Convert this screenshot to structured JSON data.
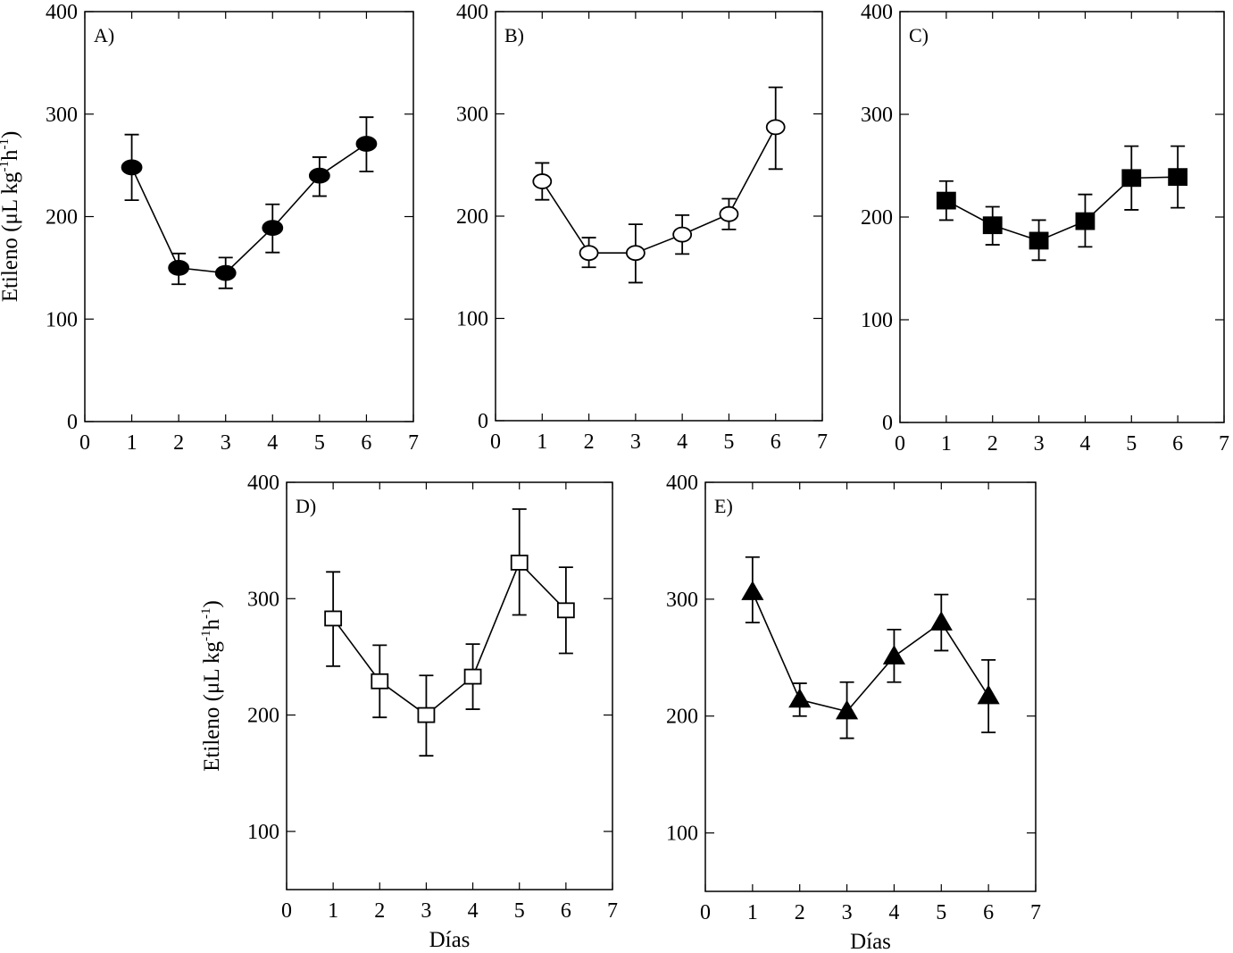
{
  "chart_data": [
    {
      "type": "line",
      "label": "A)",
      "marker": "filled-circle",
      "x": [
        1,
        2,
        3,
        4,
        5,
        6
      ],
      "values": [
        248,
        150,
        145,
        189,
        240,
        271
      ],
      "err_low": [
        216,
        134,
        130,
        165,
        220,
        244
      ],
      "err_high": [
        280,
        164,
        160,
        212,
        258,
        297
      ],
      "xlim": [
        0,
        7
      ],
      "ylim": [
        0,
        400
      ],
      "xticks": [
        "0",
        "1",
        "2",
        "3",
        "4",
        "5",
        "6",
        "7"
      ],
      "yticks": [
        "0",
        "100",
        "200",
        "300",
        "400"
      ],
      "ylabel_main": "Etileno (μL kg",
      "ylabel_sup1": "-1",
      "ylabel_mid": "h",
      "ylabel_sup2": "-1",
      "ylabel_end": ")",
      "xlabel": ""
    },
    {
      "type": "line",
      "label": "B)",
      "marker": "open-circle",
      "x": [
        1,
        2,
        3,
        4,
        5,
        6
      ],
      "values": [
        234,
        164,
        164,
        182,
        202,
        287
      ],
      "err_low": [
        216,
        150,
        135,
        163,
        187,
        246
      ],
      "err_high": [
        252,
        179,
        192,
        201,
        217,
        326
      ],
      "xlim": [
        0,
        7
      ],
      "ylim": [
        0,
        400
      ],
      "xticks": [
        "0",
        "1",
        "2",
        "3",
        "4",
        "5",
        "6",
        "7"
      ],
      "yticks": [
        "0",
        "100",
        "200",
        "300",
        "400"
      ],
      "xlabel": ""
    },
    {
      "type": "line",
      "label": "C)",
      "marker": "filled-square",
      "x": [
        1,
        2,
        3,
        4,
        5,
        6
      ],
      "values": [
        216,
        192,
        177,
        196,
        238,
        239
      ],
      "err_low": [
        197,
        173,
        158,
        171,
        207,
        209
      ],
      "err_high": [
        235,
        210,
        197,
        222,
        269,
        269
      ],
      "xlim": [
        0,
        7
      ],
      "ylim": [
        0,
        400
      ],
      "xticks": [
        "0",
        "1",
        "2",
        "3",
        "4",
        "5",
        "6",
        "7"
      ],
      "yticks": [
        "0",
        "100",
        "200",
        "300",
        "400"
      ],
      "xlabel": ""
    },
    {
      "type": "line",
      "label": "D)",
      "marker": "open-square",
      "x": [
        1,
        2,
        3,
        4,
        5,
        6
      ],
      "values": [
        283,
        229,
        200,
        233,
        331,
        290
      ],
      "err_low": [
        242,
        198,
        165,
        205,
        286,
        253
      ],
      "err_high": [
        323,
        260,
        234,
        261,
        377,
        327
      ],
      "xlim": [
        0,
        7
      ],
      "ylim": [
        50,
        400
      ],
      "xticks": [
        "0",
        "1",
        "2",
        "3",
        "4",
        "5",
        "6",
        "7"
      ],
      "yticks": [
        "100",
        "200",
        "300",
        "400"
      ],
      "ylabel_main": "Etileno (μL kg",
      "ylabel_sup1": "-1",
      "ylabel_mid": "h",
      "ylabel_sup2": "-1",
      "ylabel_end": ")",
      "xlabel": "Días"
    },
    {
      "type": "line",
      "label": "E)",
      "marker": "filled-triangle",
      "x": [
        1,
        2,
        3,
        4,
        5,
        6
      ],
      "values": [
        306,
        214,
        204,
        251,
        280,
        217
      ],
      "err_low": [
        280,
        200,
        181,
        229,
        256,
        186
      ],
      "err_high": [
        336,
        228,
        229,
        274,
        304,
        248
      ],
      "xlim": [
        0,
        7
      ],
      "ylim": [
        50,
        400
      ],
      "xticks": [
        "0",
        "1",
        "2",
        "3",
        "4",
        "5",
        "6",
        "7"
      ],
      "yticks": [
        "100",
        "200",
        "300",
        "400"
      ],
      "xlabel": "Días"
    }
  ]
}
